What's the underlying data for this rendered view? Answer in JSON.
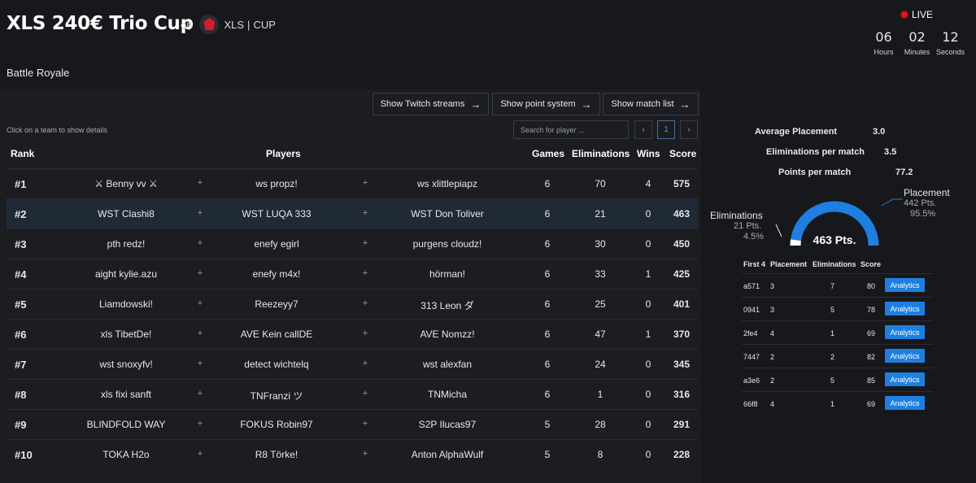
{
  "header": {
    "title": "XLS 240€ Trio Cup",
    "on_label": "on",
    "org_name": "XLS",
    "org_sep": "|",
    "org_type": "CUP",
    "subtitle": "Battle Royale",
    "live_label": "LIVE",
    "countdown": [
      {
        "value": "06",
        "label": "Hours"
      },
      {
        "value": "02",
        "label": "Minutes"
      },
      {
        "value": "12",
        "label": "Seconds"
      }
    ]
  },
  "toolbar": {
    "twitch_label": "Show Twitch streams",
    "points_label": "Show point system",
    "matches_label": "Show match list",
    "arrow": "→"
  },
  "table": {
    "hint": "Click on a team to show details",
    "search_placeholder": "Search for player ...",
    "page_prev": "‹",
    "page_current": "1",
    "page_next": "›",
    "columns": {
      "rank": "Rank",
      "players": "Players",
      "games": "Games",
      "eliminations": "Eliminations",
      "wins": "Wins",
      "score": "Score"
    },
    "plus": "+",
    "rows": [
      {
        "rank": "#1",
        "p1": "⚔ Benny vv ⚔",
        "p2": "ws propz!",
        "p3": "ws xlittlepiapz",
        "games": "6",
        "elims": "70",
        "wins": "4",
        "score": "575"
      },
      {
        "rank": "#2",
        "p1": "WST Clashi8",
        "p2": "WST LUQA 333",
        "p3": "WST Don Toliver",
        "games": "6",
        "elims": "21",
        "wins": "0",
        "score": "463"
      },
      {
        "rank": "#3",
        "p1": "pth redz!",
        "p2": "enefy egirl",
        "p3": "purgens cloudz!",
        "games": "6",
        "elims": "30",
        "wins": "0",
        "score": "450"
      },
      {
        "rank": "#4",
        "p1": "aight kylie.azu",
        "p2": "enefy m4x!",
        "p3": "hörman!",
        "games": "6",
        "elims": "33",
        "wins": "1",
        "score": "425"
      },
      {
        "rank": "#5",
        "p1": "Liamdowski!",
        "p2": "Reezeyy7",
        "p3": "313 Leon ダ",
        "games": "6",
        "elims": "25",
        "wins": "0",
        "score": "401"
      },
      {
        "rank": "#6",
        "p1": "xls TibetDe!",
        "p2": "AVE Kein callDE",
        "p3": "AVE Nomzz!",
        "games": "6",
        "elims": "47",
        "wins": "1",
        "score": "370"
      },
      {
        "rank": "#7",
        "p1": "wst snoxyfv!",
        "p2": "detect wichtelq",
        "p3": "wst alexfan",
        "games": "6",
        "elims": "24",
        "wins": "0",
        "score": "345"
      },
      {
        "rank": "#8",
        "p1": "xls fixi sanft",
        "p2": "TNFranzi ツ",
        "p3": "TNMicha",
        "games": "6",
        "elims": "1",
        "wins": "0",
        "score": "316"
      },
      {
        "rank": "#9",
        "p1": "BLINDFOLD WAY",
        "p2": "FOKUS Robin97",
        "p3": "S2P Ilucas97",
        "games": "5",
        "elims": "28",
        "wins": "0",
        "score": "291"
      },
      {
        "rank": "#10",
        "p1": "TOKA H2o",
        "p2": "R8 Törke!",
        "p3": "Anton AlphaWulf",
        "games": "5",
        "elims": "8",
        "wins": "0",
        "score": "228"
      }
    ]
  },
  "details": {
    "stats": [
      {
        "label": "Average Placement",
        "value": "3.0"
      },
      {
        "label": "Eliminations per match",
        "value": "3.5"
      },
      {
        "label": "Points per match",
        "value": "77.2"
      }
    ],
    "gauge": {
      "center_label": "463 Pts.",
      "elim_title": "Eliminations",
      "elim_pts": "21 Pts.",
      "elim_pct": "4.5%",
      "place_title": "Placement",
      "place_pts": "442 Pts.",
      "place_pct": "95.5%",
      "elim_fraction": 0.045,
      "colors": {
        "placement": "#1e7fe0",
        "eliminations": "#ffffff"
      }
    },
    "matches": {
      "columns": {
        "first": "First 4",
        "placement": "Placement",
        "eliminations": "Eliminations",
        "score": "Score"
      },
      "button_label": "Analytics",
      "rows": [
        {
          "id": "a571",
          "placement": "3",
          "elims": "7",
          "score": "80"
        },
        {
          "id": "0941",
          "placement": "3",
          "elims": "5",
          "score": "78"
        },
        {
          "id": "2fe4",
          "placement": "4",
          "elims": "1",
          "score": "69"
        },
        {
          "id": "7447",
          "placement": "2",
          "elims": "2",
          "score": "82"
        },
        {
          "id": "a3e6",
          "placement": "2",
          "elims": "5",
          "score": "85"
        },
        {
          "id": "66f8",
          "placement": "4",
          "elims": "1",
          "score": "69"
        }
      ]
    }
  }
}
